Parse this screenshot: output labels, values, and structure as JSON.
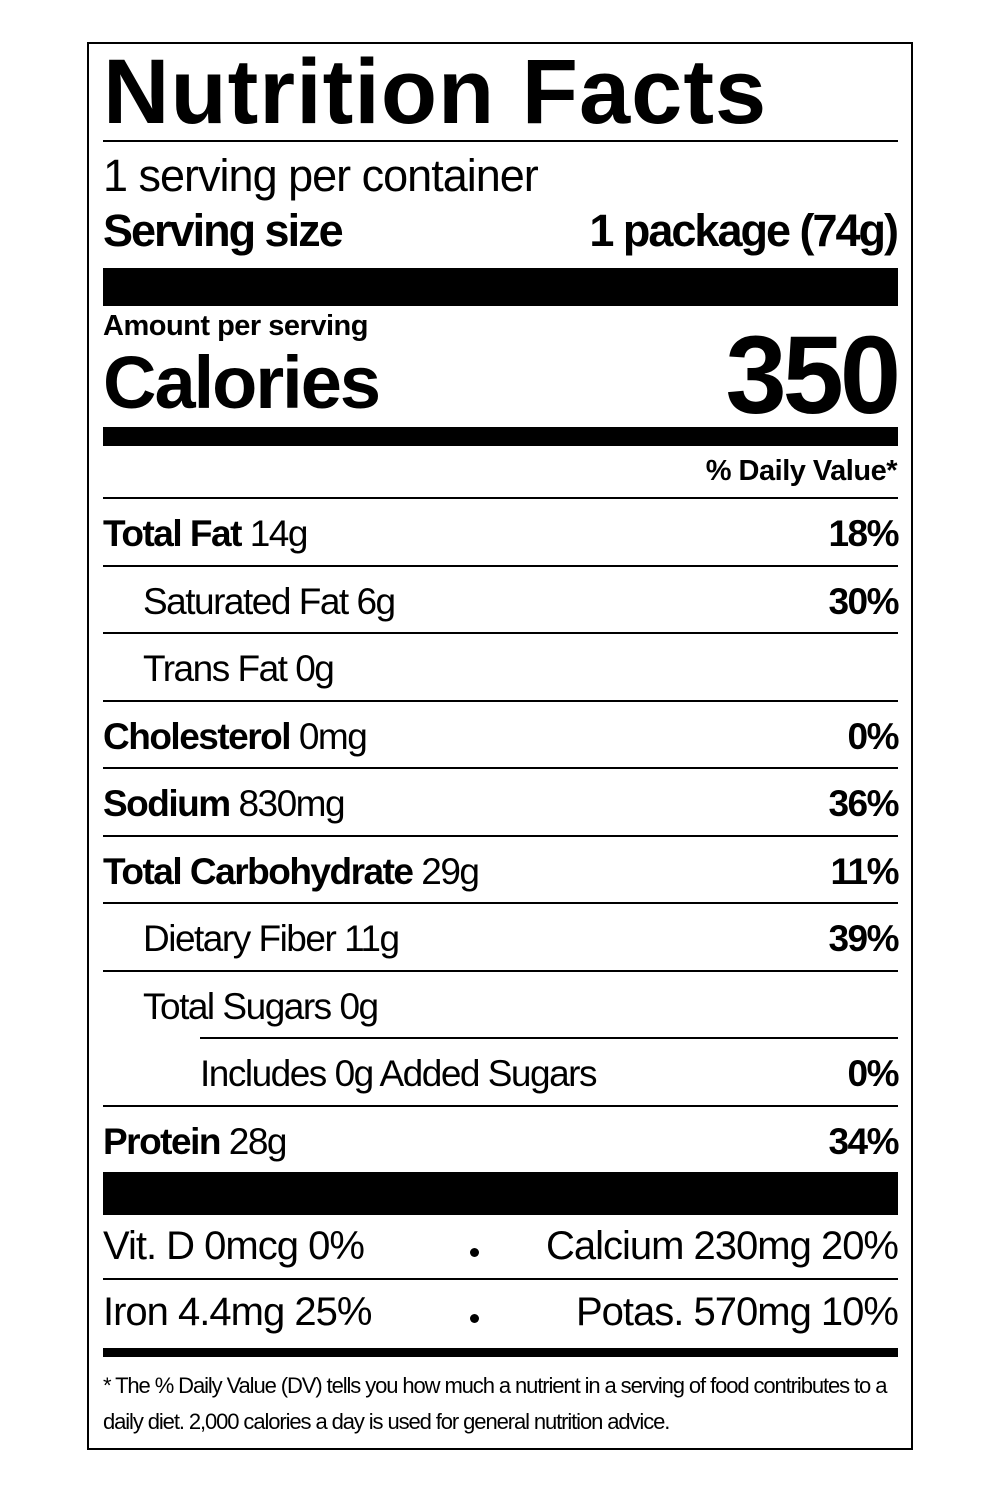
{
  "label": {
    "title": "Nutrition Facts",
    "servings": "1 serving per container",
    "serving_size": {
      "label": "Serving size",
      "value": "1 package (74g)"
    },
    "amount_label": "Amount per serving",
    "calories": {
      "label": "Calories",
      "value": "350"
    },
    "dv_header": "% Daily Value*",
    "rows": [
      {
        "name": "Total Fat",
        "amount": "14g",
        "dv": "18%"
      },
      {
        "name": "Saturated Fat",
        "amount": "6g",
        "dv": "30%"
      },
      {
        "name": "Trans Fat",
        "amount": "0g"
      },
      {
        "name": "Cholesterol",
        "amount": "0mg",
        "dv": "0%"
      },
      {
        "name": "Sodium",
        "amount": "830mg",
        "dv": "36%"
      },
      {
        "name": "Total Carbohydrate",
        "amount": "29g",
        "dv": "11%"
      },
      {
        "name": "Dietary Fiber",
        "amount": "11g",
        "dv": "39%"
      },
      {
        "name": "Total Sugars",
        "amount": "0g"
      },
      {
        "name": "Includes 0g Added Sugars",
        "dv": "0%"
      },
      {
        "name": "Protein",
        "amount": "28g",
        "dv": "34%"
      }
    ],
    "micros": [
      [
        "Vit. D 0mcg 0%",
        "Calcium 230mg 20%"
      ],
      [
        "Iron 4.4mg 25%",
        "Potas. 570mg 10%"
      ]
    ],
    "footnote": "* The % Daily Value (DV) tells you how much a nutrient in a serving of food contributes to a daily diet. 2,000 calories a day is used for general nutrition advice."
  }
}
